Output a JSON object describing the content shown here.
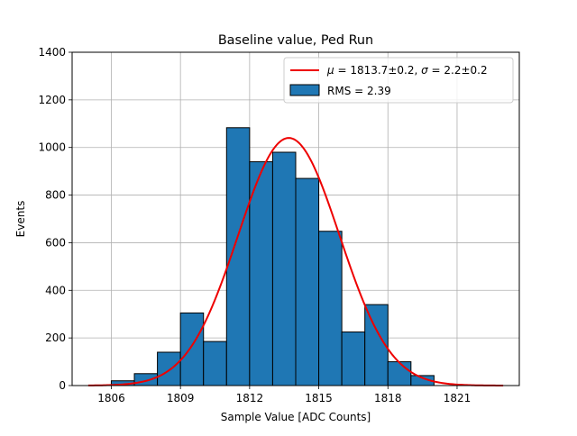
{
  "chart_data": {
    "type": "bar",
    "title": "Baseline value, Ped Run",
    "xlabel": "Sample Value [ADC Counts]",
    "ylabel": "Events",
    "xlim": [
      1804.3,
      1823.7
    ],
    "ylim": [
      0,
      1400
    ],
    "xticks": [
      1806,
      1809,
      1812,
      1815,
      1818,
      1821
    ],
    "yticks": [
      0,
      200,
      400,
      600,
      800,
      1000,
      1200,
      1400
    ],
    "grid": true,
    "legend_position": "top-right",
    "bin_width": 1,
    "series": [
      {
        "kind": "histogram",
        "name": "RMS = 2.39",
        "color": "#1f77b4",
        "edgecolor": "#000000",
        "bins": [
          {
            "x0": 1806,
            "x1": 1807,
            "count": 20
          },
          {
            "x0": 1807,
            "x1": 1808,
            "count": 50
          },
          {
            "x0": 1808,
            "x1": 1809,
            "count": 140
          },
          {
            "x0": 1809,
            "x1": 1810,
            "count": 305
          },
          {
            "x0": 1810,
            "x1": 1811,
            "count": 185
          },
          {
            "x0": 1811,
            "x1": 1812,
            "count": 1083
          },
          {
            "x0": 1812,
            "x1": 1813,
            "count": 940
          },
          {
            "x0": 1813,
            "x1": 1814,
            "count": 980
          },
          {
            "x0": 1814,
            "x1": 1815,
            "count": 870
          },
          {
            "x0": 1815,
            "x1": 1816,
            "count": 648
          },
          {
            "x0": 1816,
            "x1": 1817,
            "count": 225
          },
          {
            "x0": 1817,
            "x1": 1818,
            "count": 340
          },
          {
            "x0": 1818,
            "x1": 1819,
            "count": 100
          },
          {
            "x0": 1819,
            "x1": 1820,
            "count": 42
          }
        ]
      },
      {
        "kind": "gaussian_fit",
        "name_parts": {
          "mu_symbol": "μ",
          "mu_text": " = 1813.7±0.2, ",
          "sigma_symbol": "σ",
          "sigma_text": " = 2.2±0.2"
        },
        "color": "#ee0000",
        "mu": 1813.7,
        "sigma": 2.2,
        "amplitude": 1040,
        "x_range": [
          1805,
          1823
        ]
      }
    ]
  }
}
